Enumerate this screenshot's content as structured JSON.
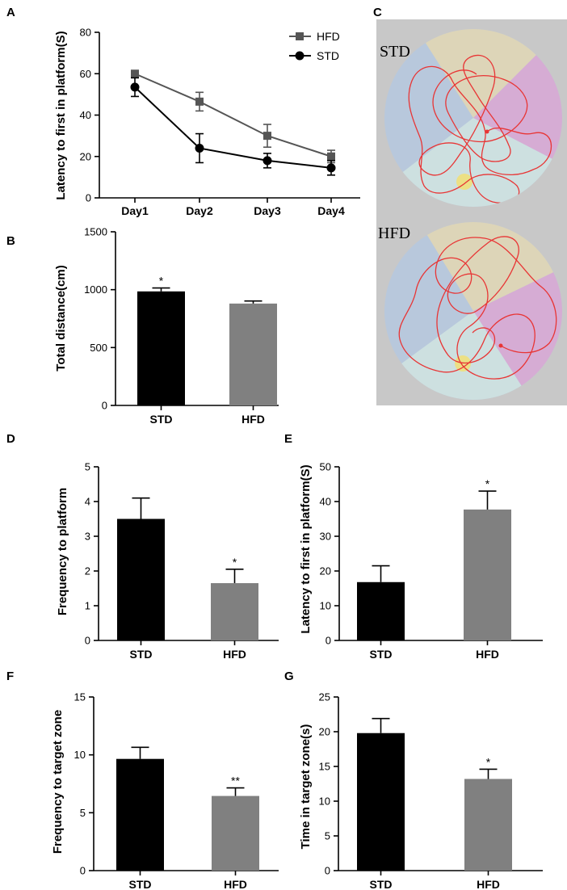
{
  "colors": {
    "std": "#000000",
    "hfd": "#808080",
    "hfd_line": "#555555",
    "traj": "#e83535"
  },
  "panels": {
    "A": {
      "label": "A",
      "chart_data": {
        "type": "line",
        "categories": [
          "Day1",
          "Day2",
          "Day3",
          "Day4"
        ],
        "ylim": [
          0,
          80
        ],
        "yticks": [
          0,
          20,
          40,
          60,
          80
        ],
        "ylabel": "Latency to first in platform(S)",
        "series": [
          {
            "name": "HFD",
            "values": [
              60,
              46.5,
              30,
              20
            ],
            "errors": [
              0.8,
              4.5,
              5.5,
              3.0
            ]
          },
          {
            "name": "STD",
            "values": [
              53.5,
              24,
              18,
              14.5
            ],
            "errors": [
              4.5,
              7.0,
              3.5,
              3.5
            ]
          }
        ]
      }
    },
    "B": {
      "label": "B",
      "chart_data": {
        "type": "bar",
        "categories": [
          "STD",
          "HFD"
        ],
        "values": [
          985,
          880
        ],
        "errors": [
          30,
          22
        ],
        "annotations": [
          "*",
          ""
        ],
        "ylim": [
          0,
          1500
        ],
        "yticks": [
          0,
          500,
          1000,
          1500
        ],
        "ylabel": "Total distance(cm)"
      }
    },
    "C": {
      "label": "C",
      "maze_titles": [
        "STD",
        "HFD"
      ]
    },
    "D": {
      "label": "D",
      "chart_data": {
        "type": "bar",
        "categories": [
          "STD",
          "HFD"
        ],
        "values": [
          3.5,
          1.65
        ],
        "errors": [
          0.6,
          0.4
        ],
        "annotations": [
          "",
          "*"
        ],
        "ylim": [
          0,
          5
        ],
        "yticks": [
          0,
          1,
          2,
          3,
          4,
          5
        ],
        "ylabel": "Frequency to  platform"
      }
    },
    "E": {
      "label": "E",
      "chart_data": {
        "type": "bar",
        "categories": [
          "STD",
          "HFD"
        ],
        "values": [
          16.8,
          37.7
        ],
        "errors": [
          4.7,
          5.3
        ],
        "annotations": [
          "",
          "*"
        ],
        "ylim": [
          0,
          50
        ],
        "yticks": [
          0,
          10,
          20,
          30,
          40,
          50
        ],
        "ylabel": "Latency to first in platform(S)"
      }
    },
    "F": {
      "label": "F",
      "chart_data": {
        "type": "bar",
        "categories": [
          "STD",
          "HFD"
        ],
        "values": [
          9.65,
          6.45
        ],
        "errors": [
          1.0,
          0.7
        ],
        "annotations": [
          "",
          "**"
        ],
        "ylim": [
          0,
          15
        ],
        "yticks": [
          0,
          5,
          10,
          15
        ],
        "ylabel": "Frequency to  target zone"
      }
    },
    "G": {
      "label": "G",
      "chart_data": {
        "type": "bar",
        "categories": [
          "STD",
          "HFD"
        ],
        "values": [
          19.8,
          13.2
        ],
        "errors": [
          2.1,
          1.4
        ],
        "annotations": [
          "",
          "*"
        ],
        "ylim": [
          0,
          25
        ],
        "yticks": [
          0,
          5,
          10,
          15,
          20,
          25
        ],
        "ylabel": "Time in target zone(s)"
      }
    }
  }
}
